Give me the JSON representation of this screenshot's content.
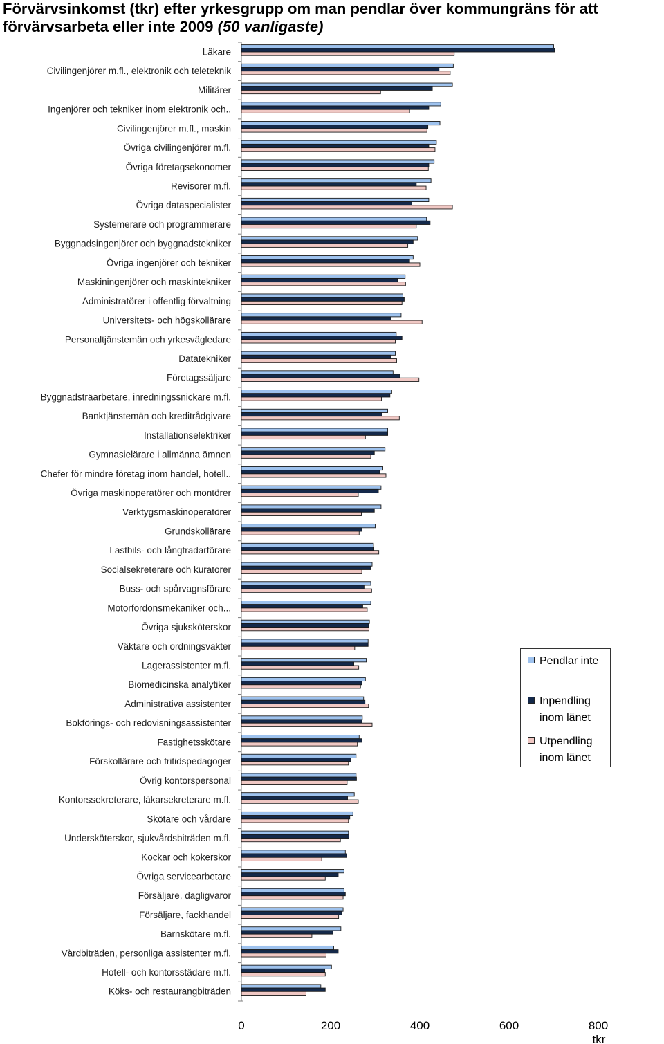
{
  "title_main": "Förvärvsinkomst (tkr) efter yrkesgrupp om man pendlar över kommungräns för att förvärvsarbeta eller inte 2009 ",
  "title_sub": "(50 vanligaste)",
  "chart_data": {
    "type": "bar",
    "orientation": "horizontal",
    "title": "Förvärvsinkomst (tkr) efter yrkesgrupp om man pendlar över kommungräns för att förvärvsarbeta eller inte 2009 (50 vanligaste)",
    "xlabel": "tkr",
    "ylabel": "",
    "xlim": [
      0,
      800
    ],
    "xticks": [
      "0",
      "200",
      "400",
      "600",
      "800"
    ],
    "legend_position": "right",
    "categories": [
      "Läkare",
      "Civilingenjörer m.fl., elektronik och teleteknik",
      "Militärer",
      "Ingenjörer och tekniker inom elektronik och..",
      "Civilingenjörer m.fl., maskin",
      "Övriga civilingenjörer m.fl.",
      "Övriga företagsekonomer",
      "Revisorer m.fl.",
      "Övriga dataspecialister",
      "Systemerare och programmerare",
      "Byggnadsingenjörer och byggnadstekniker",
      "Övriga ingenjörer och tekniker",
      "Maskiningenjörer och maskintekniker",
      "Administratörer i offentlig förvaltning",
      "Universitets- och högskollärare",
      "Personaltjänstemän och yrkesvägledare",
      "Datatekniker",
      "Företagssäljare",
      "Byggnadsträarbetare, inredningssnickare m.fl.",
      "Banktjänstemän och kreditrådgivare",
      "Installationselektriker",
      "Gymnasielärare i allmänna ämnen",
      "Chefer för mindre företag inom handel, hotell..",
      "Övriga maskinoperatörer och montörer",
      "Verktygsmaskinoperatörer",
      "Grundskollärare",
      "Lastbils- och långtradarförare",
      "Socialsekreterare och kuratorer",
      "Buss- och spårvagnsförare",
      "Motorfordonsmekaniker och...",
      "Övriga sjuksköterskor",
      "Väktare och ordningsvakter",
      "Lagerassistenter m.fl.",
      "Biomedicinska analytiker",
      "Administrativa assistenter",
      "Bokförings- och redovisningsassistenter",
      "Fastighetsskötare",
      "Förskollärare och fritidspedagoger",
      "Övrig kontorspersonal",
      "Kontorssekreterare, läkarsekreterare m.fl.",
      "Skötare och vårdare",
      "Undersköterskor, sjukvårdsbiträden m.fl.",
      "Kockar och kokerskor",
      "Övriga servicearbetare",
      "Försäljare, dagligvaror",
      "Försäljare, fackhandel",
      "Barnskötare m.fl.",
      "Vårdbiträden, personliga assistenter m.fl.",
      "Hotell- och kontorsstädare m.fl.",
      "Köks- och restaurangbiträden"
    ],
    "series": [
      {
        "name": "Pendlar inte",
        "color": "#9ec2ee",
        "values": [
          700,
          475,
          473,
          447,
          445,
          437,
          432,
          425,
          420,
          415,
          395,
          385,
          367,
          362,
          358,
          347,
          345,
          340,
          337,
          328,
          328,
          322,
          317,
          313,
          313,
          300,
          296,
          293,
          290,
          290,
          287,
          284,
          280,
          278,
          274,
          271,
          264,
          257,
          257,
          253,
          250,
          240,
          233,
          230,
          230,
          228,
          223,
          207,
          202,
          178
        ]
      },
      {
        "name": "Inpendling inom länet",
        "color": "#14294a",
        "values": [
          702,
          443,
          428,
          420,
          418,
          420,
          420,
          392,
          382,
          423,
          385,
          377,
          350,
          365,
          335,
          360,
          335,
          355,
          333,
          315,
          328,
          298,
          310,
          307,
          298,
          270,
          297,
          290,
          275,
          272,
          285,
          284,
          252,
          270,
          277,
          270,
          270,
          245,
          258,
          238,
          243,
          241,
          236,
          217,
          233,
          225,
          205,
          217,
          187,
          188
        ]
      },
      {
        "name": "Utpendling inom länet",
        "color": "#f0c8c4",
        "values": [
          477,
          468,
          312,
          377,
          416,
          434,
          419,
          414,
          473,
          392,
          373,
          400,
          368,
          360,
          405,
          345,
          348,
          398,
          314,
          354,
          278,
          290,
          324,
          262,
          269,
          264,
          308,
          270,
          292,
          282,
          286,
          254,
          263,
          267,
          285,
          293,
          260,
          240,
          237,
          262,
          240,
          222,
          180,
          188,
          228,
          218,
          158,
          190,
          188,
          145
        ]
      }
    ]
  }
}
